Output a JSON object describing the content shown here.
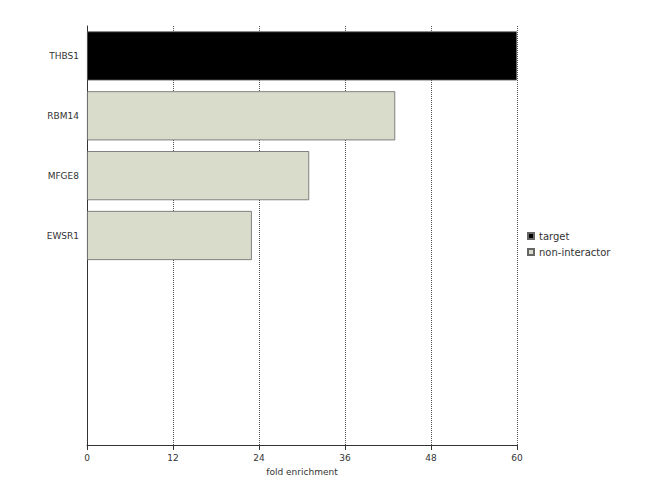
{
  "chart_data": {
    "type": "bar",
    "orientation": "horizontal",
    "x_label": "fold enrichment",
    "categories": [
      "THBS1",
      "RBM14",
      "MFGE8",
      "EWSR1",
      null,
      null,
      null
    ],
    "series": [
      {
        "name": "target",
        "color": "#000000",
        "values": [
          60,
          null,
          null,
          null,
          null,
          null,
          null
        ]
      },
      {
        "name": "non-interactor",
        "color": "#d9dccb",
        "values": [
          null,
          43,
          31,
          23,
          null,
          null,
          null
        ]
      }
    ],
    "xlim": [
      0,
      60
    ],
    "xticks": [
      0,
      12,
      24,
      36,
      48,
      60
    ],
    "grid": true,
    "legend": "right"
  }
}
